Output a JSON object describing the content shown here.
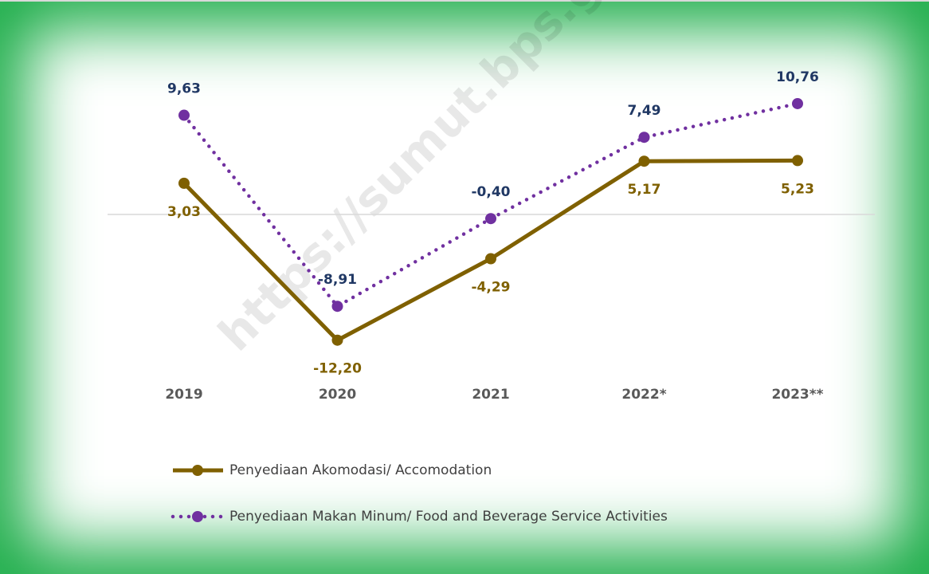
{
  "chart_data": {
    "type": "line",
    "watermark": "https://sumut.bps.go.id",
    "categories": [
      "2019",
      "2020",
      "2021",
      "2022*",
      "2023**"
    ],
    "series": [
      {
        "name": "Penyediaan Akomodasi/ Accomodation",
        "color": "#7f6000",
        "label_color": "#7f6000",
        "dash": "solid",
        "values": [
          3.03,
          -12.2,
          -4.29,
          5.17,
          5.23
        ],
        "value_labels": [
          "3,03",
          "-12,20",
          "-4,29",
          "5,17",
          "5,23"
        ]
      },
      {
        "name": "Penyediaan Makan Minum/ Food and Beverage Service Activities",
        "color": "#7030a0",
        "label_color": "#203864",
        "dash": "dotted",
        "values": [
          9.63,
          -8.91,
          -0.4,
          7.49,
          10.76
        ],
        "value_labels": [
          "9,63",
          "-8,91",
          "-0,40",
          "7,49",
          "10,76"
        ]
      }
    ],
    "ylim": [
      -14,
      13
    ]
  }
}
